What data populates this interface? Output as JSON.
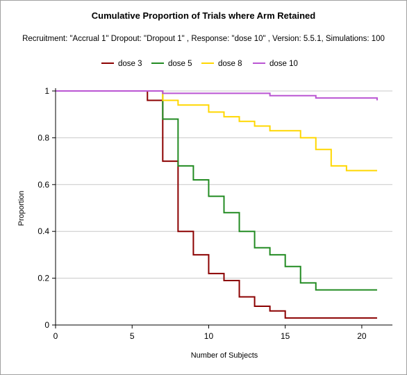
{
  "chart_data": {
    "type": "line",
    "step": true,
    "title": "Cumulative Proportion of Trials where Arm Retained",
    "subtitle": "Recruitment: \"Accrual 1\" Dropout: \"Dropout 1\" , Response: \"dose 10\" , Version: 5.5.1, Simulations: 100",
    "xlabel": "Number of Subjects",
    "ylabel": "Proportion",
    "xlim": [
      0,
      22
    ],
    "ylim": [
      0,
      1
    ],
    "xticks": [
      0,
      5,
      10,
      15,
      20
    ],
    "xtick_labels": [
      "0",
      "5",
      "10",
      "15",
      "20"
    ],
    "yticks": [
      0,
      0.2,
      0.4,
      0.6,
      0.8,
      1
    ],
    "ytick_labels": [
      "0",
      "0.2",
      "0.4",
      "0.6",
      "0.8",
      "1"
    ],
    "grid": {
      "horizontal": true,
      "vertical": false
    },
    "legend_position": "top",
    "series": [
      {
        "name": "dose 3",
        "color": "#8b0000",
        "x": [
          0,
          6,
          7,
          8,
          9,
          10,
          11,
          12,
          13,
          14,
          15,
          16,
          17,
          18,
          19,
          20,
          21
        ],
        "y": [
          1.0,
          0.96,
          0.7,
          0.4,
          0.3,
          0.22,
          0.19,
          0.12,
          0.08,
          0.06,
          0.03,
          0.03,
          0.03,
          0.03,
          0.03,
          0.03,
          0.03
        ]
      },
      {
        "name": "dose 5",
        "color": "#228b22",
        "x": [
          0,
          7,
          8,
          9,
          10,
          11,
          12,
          13,
          14,
          15,
          16,
          17,
          18,
          19,
          20,
          21
        ],
        "y": [
          1.0,
          0.88,
          0.68,
          0.62,
          0.55,
          0.48,
          0.4,
          0.33,
          0.3,
          0.25,
          0.18,
          0.15,
          0.15,
          0.15,
          0.15,
          0.15
        ]
      },
      {
        "name": "dose 8",
        "color": "#ffd700",
        "x": [
          0,
          7,
          8,
          9,
          10,
          11,
          12,
          13,
          14,
          15,
          16,
          17,
          18,
          19,
          20,
          21
        ],
        "y": [
          1.0,
          0.96,
          0.94,
          0.94,
          0.91,
          0.89,
          0.87,
          0.85,
          0.83,
          0.83,
          0.8,
          0.75,
          0.68,
          0.66,
          0.66,
          0.66
        ]
      },
      {
        "name": "dose 10",
        "color": "#ba55d3",
        "x": [
          0,
          7,
          8,
          9,
          10,
          11,
          12,
          13,
          14,
          15,
          16,
          17,
          18,
          19,
          20,
          21
        ],
        "y": [
          1.0,
          0.99,
          0.99,
          0.99,
          0.99,
          0.99,
          0.99,
          0.99,
          0.98,
          0.98,
          0.98,
          0.97,
          0.97,
          0.97,
          0.97,
          0.96
        ]
      }
    ]
  }
}
